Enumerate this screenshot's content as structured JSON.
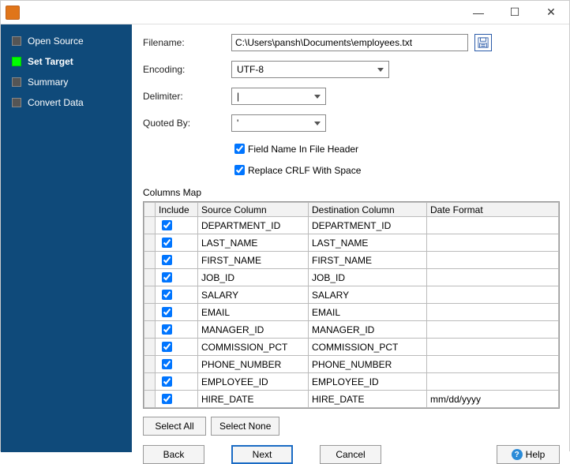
{
  "window": {
    "minimize_glyph": "—",
    "maximize_glyph": "☐",
    "close_glyph": "✕"
  },
  "sidebar": {
    "steps": [
      {
        "label": "Open Source",
        "active": false
      },
      {
        "label": "Set Target",
        "active": true
      },
      {
        "label": "Summary",
        "active": false
      },
      {
        "label": "Convert Data",
        "active": false
      }
    ]
  },
  "form": {
    "filename_label": "Filename:",
    "filename_value": "C:\\Users\\pansh\\Documents\\employees.txt",
    "encoding_label": "Encoding:",
    "encoding_value": "UTF-8",
    "delimiter_label": "Delimiter:",
    "delimiter_value": "|",
    "quoted_label": "Quoted By:",
    "quoted_value": "'",
    "check_header_label": "Field Name In File Header",
    "check_header_checked": true,
    "check_crlf_label": "Replace CRLF With Space",
    "check_crlf_checked": true
  },
  "columns": {
    "section_label": "Columns Map",
    "headers": {
      "include": "Include",
      "source": "Source Column",
      "dest": "Destination Column",
      "datefmt": "Date Format"
    },
    "rows": [
      {
        "include": true,
        "source": "DEPARTMENT_ID",
        "dest": "DEPARTMENT_ID",
        "datefmt": ""
      },
      {
        "include": true,
        "source": "LAST_NAME",
        "dest": "LAST_NAME",
        "datefmt": ""
      },
      {
        "include": true,
        "source": "FIRST_NAME",
        "dest": "FIRST_NAME",
        "datefmt": ""
      },
      {
        "include": true,
        "source": "JOB_ID",
        "dest": "JOB_ID",
        "datefmt": ""
      },
      {
        "include": true,
        "source": "SALARY",
        "dest": "SALARY",
        "datefmt": ""
      },
      {
        "include": true,
        "source": "EMAIL",
        "dest": "EMAIL",
        "datefmt": ""
      },
      {
        "include": true,
        "source": "MANAGER_ID",
        "dest": "MANAGER_ID",
        "datefmt": ""
      },
      {
        "include": true,
        "source": "COMMISSION_PCT",
        "dest": "COMMISSION_PCT",
        "datefmt": ""
      },
      {
        "include": true,
        "source": "PHONE_NUMBER",
        "dest": "PHONE_NUMBER",
        "datefmt": ""
      },
      {
        "include": true,
        "source": "EMPLOYEE_ID",
        "dest": "EMPLOYEE_ID",
        "datefmt": ""
      },
      {
        "include": true,
        "source": "HIRE_DATE",
        "dest": "HIRE_DATE",
        "datefmt": "mm/dd/yyyy"
      }
    ],
    "select_all_label": "Select All",
    "select_none_label": "Select None"
  },
  "footer": {
    "back_label": "Back",
    "next_label": "Next",
    "cancel_label": "Cancel",
    "help_label": "Help"
  },
  "colors": {
    "sidebar_bg": "#0f4a7a",
    "active_step": "#00ff00",
    "primary_border": "#1a6bc4",
    "app_icon": "#e0751a"
  }
}
